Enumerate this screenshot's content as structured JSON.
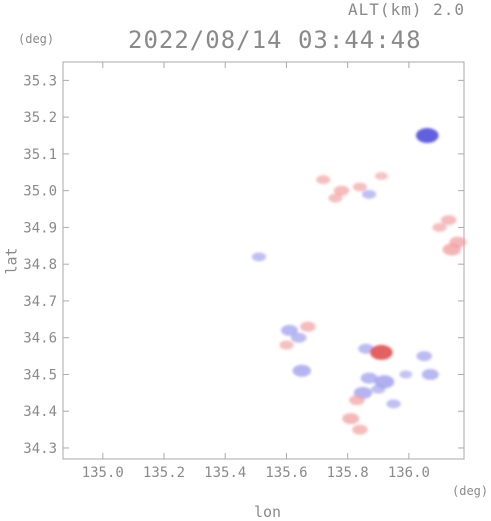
{
  "header": {
    "alt_label": "ALT(km) 2.0",
    "timestamp": "2022/08/14 03:44:48",
    "y_unit": "(deg)",
    "x_unit": "(deg)"
  },
  "chart_data": {
    "type": "heatmap",
    "xlabel": "lon",
    "ylabel": "lat",
    "xlim": [
      134.87,
      136.18
    ],
    "ylim": [
      34.27,
      35.35
    ],
    "xticks": [
      "135.0",
      "135.2",
      "135.4",
      "135.6",
      "135.8",
      "136.0"
    ],
    "yticks": [
      "34.3",
      "34.4",
      "34.5",
      "34.6",
      "34.7",
      "34.8",
      "34.9",
      "35.0",
      "35.1",
      "35.2",
      "35.3"
    ],
    "grid": false,
    "colors": {
      "positive": "#f2a0a0",
      "negative": "#a0a0ee",
      "strong_positive": "#e05050",
      "strong_negative": "#5050dd"
    },
    "regions": [
      {
        "lon": 135.78,
        "lat": 35.0,
        "value": 0.4
      },
      {
        "lon": 135.72,
        "lat": 35.03,
        "value": 0.3
      },
      {
        "lon": 135.84,
        "lat": 35.01,
        "value": 0.3
      },
      {
        "lon": 135.91,
        "lat": 35.04,
        "value": 0.2
      },
      {
        "lon": 135.76,
        "lat": 34.98,
        "value": 0.3
      },
      {
        "lon": 135.87,
        "lat": 34.99,
        "value": -0.3
      },
      {
        "lon": 136.13,
        "lat": 34.92,
        "value": 0.4
      },
      {
        "lon": 136.1,
        "lat": 34.9,
        "value": 0.3
      },
      {
        "lon": 136.16,
        "lat": 34.86,
        "value": 0.5
      },
      {
        "lon": 136.14,
        "lat": 34.84,
        "value": 0.6
      },
      {
        "lon": 136.06,
        "lat": 35.15,
        "value": -0.9
      },
      {
        "lon": 135.61,
        "lat": 34.62,
        "value": -0.5
      },
      {
        "lon": 135.64,
        "lat": 34.6,
        "value": -0.4
      },
      {
        "lon": 135.6,
        "lat": 34.58,
        "value": 0.3
      },
      {
        "lon": 135.67,
        "lat": 34.63,
        "value": 0.4
      },
      {
        "lon": 135.65,
        "lat": 34.51,
        "value": -0.6
      },
      {
        "lon": 135.86,
        "lat": 34.57,
        "value": -0.4
      },
      {
        "lon": 135.91,
        "lat": 34.56,
        "value": 0.9
      },
      {
        "lon": 135.87,
        "lat": 34.49,
        "value": -0.5
      },
      {
        "lon": 135.92,
        "lat": 34.48,
        "value": -0.7
      },
      {
        "lon": 135.9,
        "lat": 34.46,
        "value": -0.3
      },
      {
        "lon": 135.85,
        "lat": 34.45,
        "value": -0.6
      },
      {
        "lon": 135.83,
        "lat": 34.43,
        "value": 0.4
      },
      {
        "lon": 135.95,
        "lat": 34.42,
        "value": -0.3
      },
      {
        "lon": 135.81,
        "lat": 34.38,
        "value": 0.5
      },
      {
        "lon": 135.84,
        "lat": 34.35,
        "value": 0.4
      },
      {
        "lon": 135.99,
        "lat": 34.5,
        "value": -0.2
      },
      {
        "lon": 136.05,
        "lat": 34.55,
        "value": -0.4
      },
      {
        "lon": 136.07,
        "lat": 34.5,
        "value": -0.5
      },
      {
        "lon": 135.51,
        "lat": 34.82,
        "value": -0.3
      }
    ]
  }
}
